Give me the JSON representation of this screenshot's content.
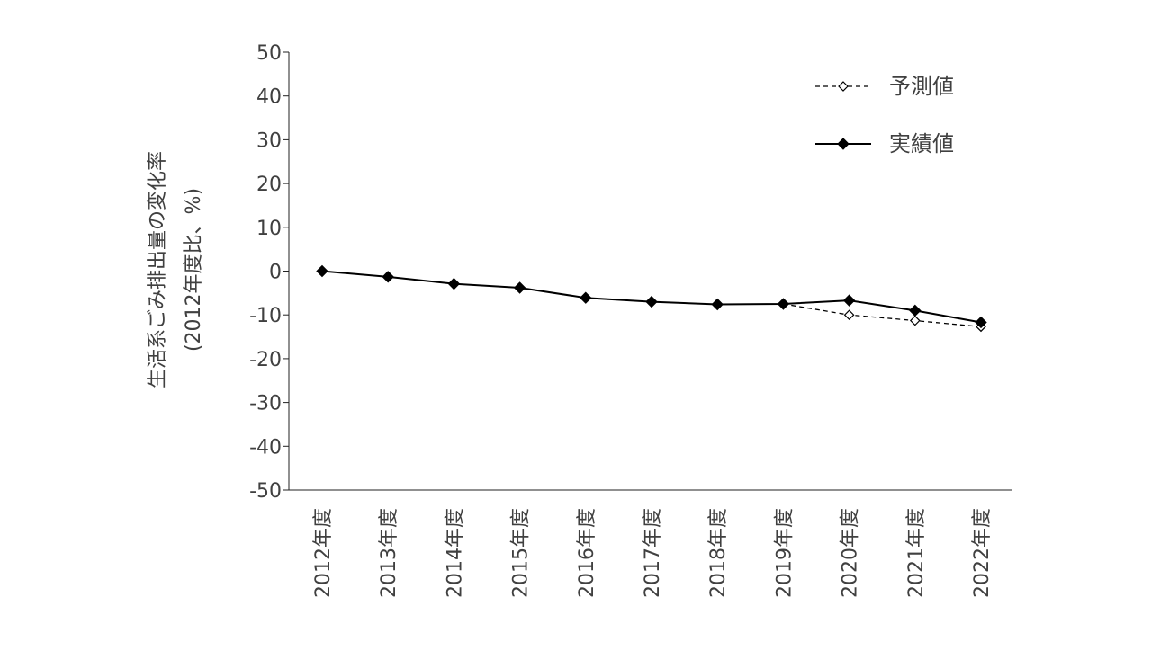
{
  "chart_data": {
    "type": "line",
    "title": "",
    "ylabel_lines": [
      "生活系ごみ排出量の変化率",
      "(2012年度比、%)"
    ],
    "xlabel": "",
    "categories": [
      "2012年度",
      "2013年度",
      "2014年度",
      "2015年度",
      "2016年度",
      "2017年度",
      "2018年度",
      "2019年度",
      "2020年度",
      "2021年度",
      "2022年度"
    ],
    "ylim": [
      -50,
      50
    ],
    "yticks": [
      50,
      40,
      30,
      20,
      10,
      0,
      -10,
      -20,
      -30,
      -40,
      -50
    ],
    "ytick_labels": [
      "50",
      "40",
      "30",
      "20",
      "10",
      "0",
      "-10",
      "-20",
      "-30",
      "-40",
      "-50"
    ],
    "grid": false,
    "legend_position": "top-right",
    "series": [
      {
        "name": "予測値",
        "style": "dashed",
        "marker": "hollow-diamond",
        "x": [
          "2019年度",
          "2020年度",
          "2021年度",
          "2022年度"
        ],
        "values": [
          -7.5,
          -10.0,
          -11.3,
          -12.7
        ]
      },
      {
        "name": "実績値",
        "style": "solid",
        "marker": "filled-diamond",
        "x": [
          "2012年度",
          "2013年度",
          "2014年度",
          "2015年度",
          "2016年度",
          "2017年度",
          "2018年度",
          "2019年度",
          "2020年度",
          "2021年度",
          "2022年度"
        ],
        "values": [
          0,
          -1.3,
          -2.9,
          -3.8,
          -6.1,
          -7.0,
          -7.6,
          -7.5,
          -6.7,
          -9.0,
          -11.7
        ]
      }
    ]
  }
}
